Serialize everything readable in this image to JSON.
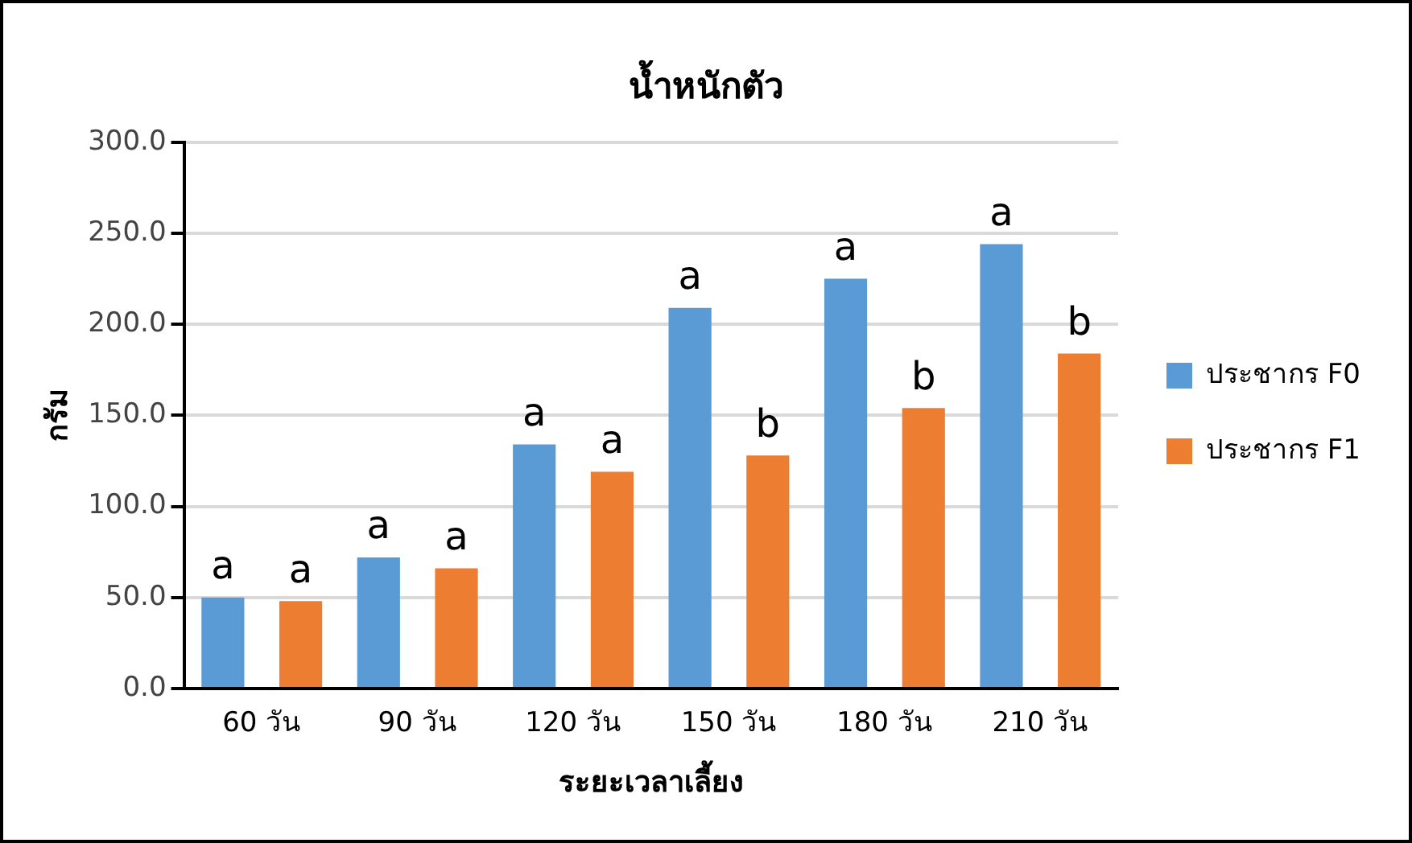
{
  "chart_data": {
    "type": "bar",
    "title": "น้ำหนักตัว",
    "xlabel": "ระยะเวลาเลี้ยง",
    "ylabel": "กรัม",
    "categories": [
      "60 วัน",
      "90 วัน",
      "120 วัน",
      "150 วัน",
      "180 วัน",
      "210 วัน"
    ],
    "series": [
      {
        "name": "ประชากร F0",
        "color": "#5b9bd5",
        "values": [
          50,
          72,
          134,
          209,
          225,
          244
        ],
        "value_labels": [
          "a",
          "a",
          "a",
          "a",
          "a",
          "a"
        ]
      },
      {
        "name": "ประชากร F1",
        "color": "#ed7d31",
        "values": [
          48,
          66,
          119,
          128,
          154,
          184
        ],
        "value_labels": [
          "a",
          "a",
          "a",
          "b",
          "b",
          "b"
        ]
      }
    ],
    "ylim": [
      0,
      300
    ],
    "yticks": [
      {
        "value": 0,
        "label": "0.0"
      },
      {
        "value": 50,
        "label": "50.0"
      },
      {
        "value": 100,
        "label": "100.0"
      },
      {
        "value": 150,
        "label": "150.0"
      },
      {
        "value": 200,
        "label": "200.0"
      },
      {
        "value": 250,
        "label": "250.0"
      },
      {
        "value": 300,
        "label": "300.0"
      }
    ],
    "grid": "y",
    "legend": "right"
  }
}
